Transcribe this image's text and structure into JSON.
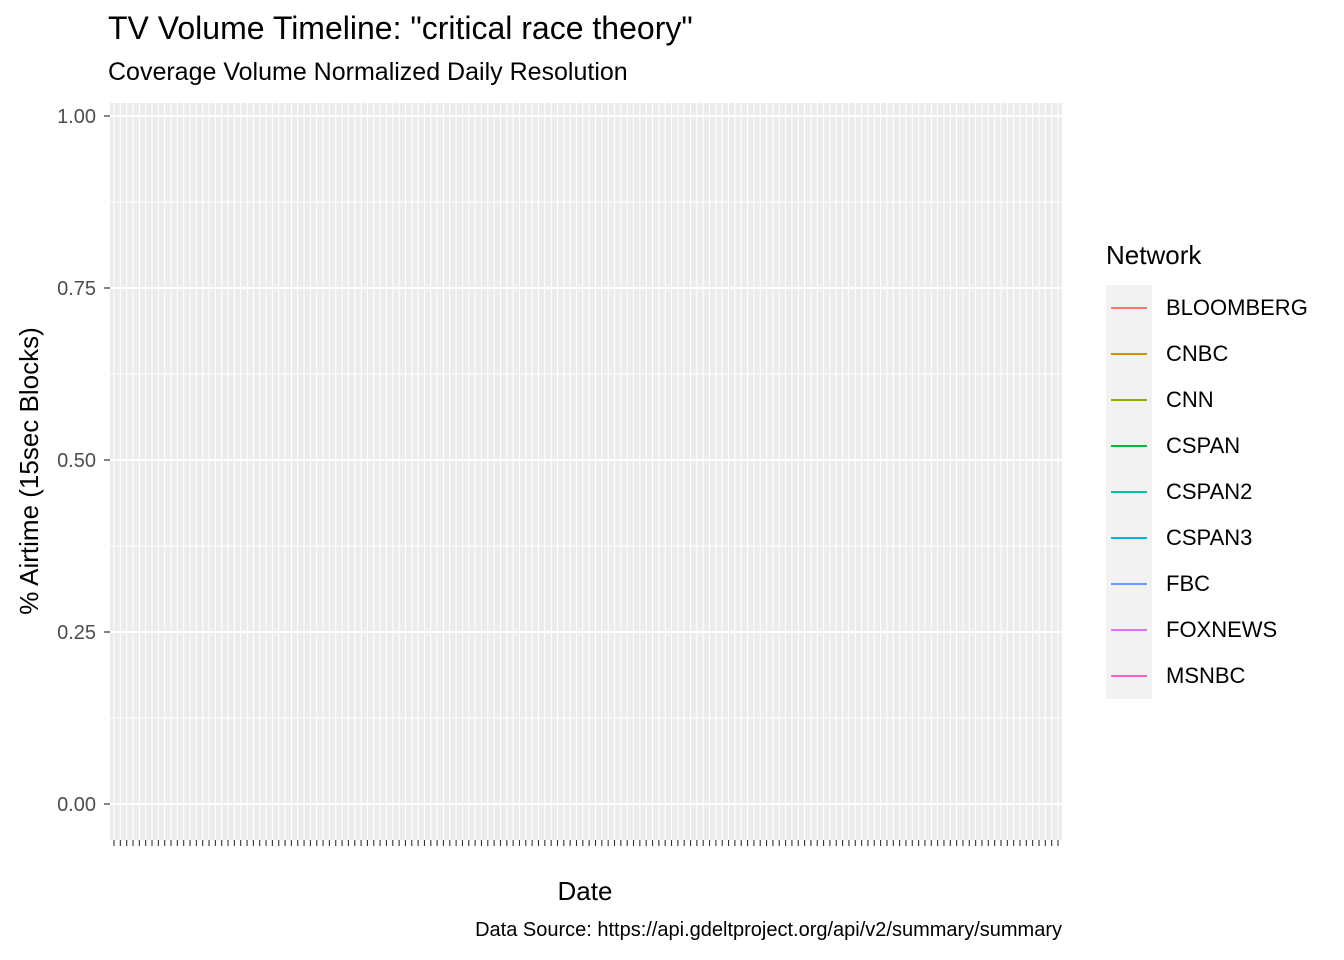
{
  "chart_data": {
    "type": "line",
    "title": "TV Volume Timeline: \"critical race theory\"",
    "subtitle": "Coverage Volume Normalized Daily Resolution",
    "xlabel": "Date",
    "ylabel": "% Airtime (15sec Blocks)",
    "caption": "Data Source: https://api.gdeltproject.org/api/v2/summary/summary",
    "ylim": [
      0,
      1
    ],
    "y_ticks": [
      "0.00",
      "0.25",
      "0.50",
      "0.75",
      "1.00"
    ],
    "y_tick_values": [
      0,
      0.25,
      0.5,
      0.75,
      1.0
    ],
    "x_tick_count": 150,
    "x_tick_labels_note": "",
    "series": [],
    "legend": {
      "title": "Network",
      "placement": "right",
      "items": [
        {
          "label": "BLOOMBERG",
          "color": "#F8766D"
        },
        {
          "label": "CNBC",
          "color": "#D39200"
        },
        {
          "label": "CNN",
          "color": "#93AA00"
        },
        {
          "label": "CSPAN",
          "color": "#00BA38"
        },
        {
          "label": "CSPAN2",
          "color": "#00C19F"
        },
        {
          "label": "CSPAN3",
          "color": "#00B9E3"
        },
        {
          "label": "FBC",
          "color": "#619CFF"
        },
        {
          "label": "FOXNEWS",
          "color": "#DB72FB"
        },
        {
          "label": "MSNBC",
          "color": "#FF61C3"
        }
      ]
    },
    "grid": true,
    "panel_background": "#ebebeb"
  }
}
